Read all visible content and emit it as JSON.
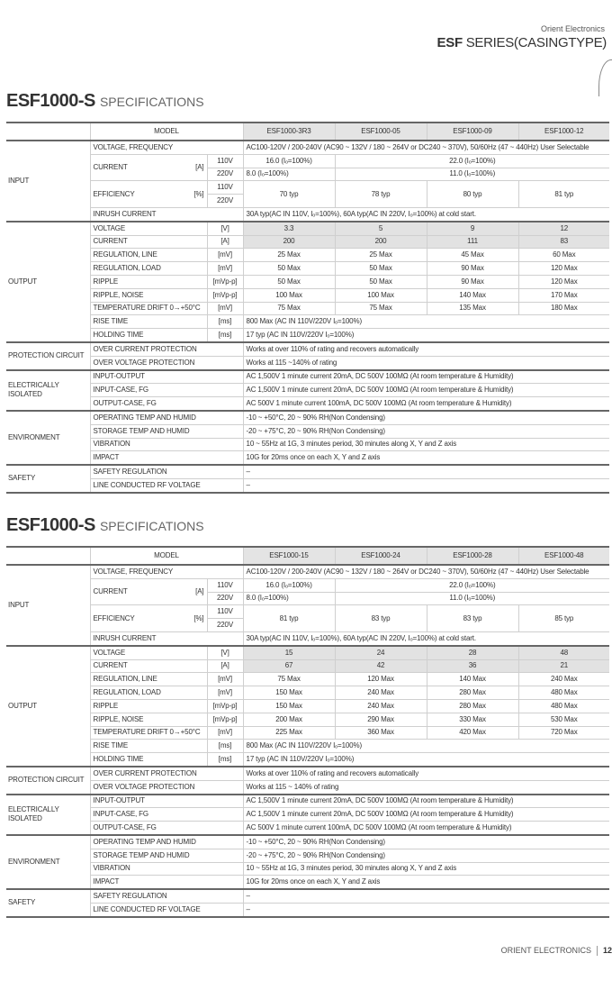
{
  "header": {
    "company": "Orient Electronics",
    "series_bold": "ESF",
    "series_rest": "SERIES(CASINGTYPE)"
  },
  "footer": {
    "company": "ORIENT ELECTRONICS",
    "page": "12"
  },
  "tables": [
    {
      "title_bold": "ESF1000-S",
      "title_rest": "SPECIFICATIONS",
      "model_label": "MODEL",
      "models": [
        "ESF1000-3R3",
        "ESF1000-05",
        "ESF1000-09",
        "ESF1000-12"
      ],
      "rows": [
        {
          "g": "INPUT",
          "label": "VOLTAGE, FREQUENCY",
          "cells": [
            [
              "AC100-120V / 200-240V (AC90 ~ 132V / 180 ~ 264V or DC240 ~ 370V), 50/60Hz (47 ~ 440Hz) User Selectable",
              4,
              1,
              "l"
            ]
          ]
        },
        {
          "g": "INPUT",
          "label": "CURRENT",
          "unit": "[A]",
          "sub": "110V",
          "lrs": 2,
          "cells": [
            [
              "16.0 (Iₒ=100%)",
              1,
              1,
              "c"
            ],
            [
              "22.0 (Iₒ=100%)",
              3,
              1,
              "c"
            ]
          ]
        },
        {
          "g": "INPUT",
          "cont": true,
          "sub": "220V",
          "cells": [
            [
              "8.0 (Iₒ=100%)",
              1,
              1,
              "l"
            ],
            [
              "11.0 (Iₒ=100%)",
              3,
              1,
              "c"
            ]
          ]
        },
        {
          "g": "INPUT",
          "label": "EFFICIENCY",
          "unit": "[%]",
          "sub": "110V",
          "lrs": 2,
          "cells": [
            [
              "70 typ",
              1,
              2,
              "c"
            ],
            [
              "78 typ",
              1,
              2,
              "c"
            ],
            [
              "80 typ",
              1,
              2,
              "c"
            ],
            [
              "81 typ",
              1,
              2,
              "c"
            ]
          ]
        },
        {
          "g": "INPUT",
          "cont": true,
          "sub": "220V",
          "cells": []
        },
        {
          "g": "INPUT",
          "label": "INRUSH CURRENT",
          "cells": [
            [
              "30A typ(AC IN 110V, Iₒ=100%), 60A typ(AC IN 220V, Iₒ=100%) at cold start.",
              4,
              1,
              "l"
            ]
          ]
        },
        {
          "g": "OUTPUT",
          "label": "VOLTAGE",
          "unit": "[V]",
          "gray": true,
          "cells": [
            [
              "3.3",
              1,
              1,
              "c"
            ],
            [
              "5",
              1,
              1,
              "c"
            ],
            [
              "9",
              1,
              1,
              "c"
            ],
            [
              "12",
              1,
              1,
              "c"
            ]
          ]
        },
        {
          "g": "OUTPUT",
          "label": "CURRENT",
          "unit": "[A]",
          "gray": true,
          "cells": [
            [
              "200",
              1,
              1,
              "c"
            ],
            [
              "200",
              1,
              1,
              "c"
            ],
            [
              "111",
              1,
              1,
              "c"
            ],
            [
              "83",
              1,
              1,
              "c"
            ]
          ]
        },
        {
          "g": "OUTPUT",
          "label": "REGULATION, LINE",
          "unit": "[mV]",
          "cells": [
            [
              "25 Max",
              1,
              1,
              "c"
            ],
            [
              "25 Max",
              1,
              1,
              "c"
            ],
            [
              "45 Max",
              1,
              1,
              "c"
            ],
            [
              "60 Max",
              1,
              1,
              "c"
            ]
          ]
        },
        {
          "g": "OUTPUT",
          "label": "REGULATION, LOAD",
          "unit": "[mV]",
          "cells": [
            [
              "50 Max",
              1,
              1,
              "c"
            ],
            [
              "50 Max",
              1,
              1,
              "c"
            ],
            [
              "90 Max",
              1,
              1,
              "c"
            ],
            [
              "120 Max",
              1,
              1,
              "c"
            ]
          ]
        },
        {
          "g": "OUTPUT",
          "label": "RIPPLE",
          "unit": "[mVp-p]",
          "cells": [
            [
              "50 Max",
              1,
              1,
              "c"
            ],
            [
              "50 Max",
              1,
              1,
              "c"
            ],
            [
              "90 Max",
              1,
              1,
              "c"
            ],
            [
              "120 Max",
              1,
              1,
              "c"
            ]
          ]
        },
        {
          "g": "OUTPUT",
          "label": "RIPPLE, NOISE",
          "unit": "[mVp-p]",
          "cells": [
            [
              "100 Max",
              1,
              1,
              "c"
            ],
            [
              "100 Max",
              1,
              1,
              "c"
            ],
            [
              "140 Max",
              1,
              1,
              "c"
            ],
            [
              "170 Max",
              1,
              1,
              "c"
            ]
          ]
        },
        {
          "g": "OUTPUT",
          "label": "TEMPERATURE DRIFT 0→+50°C",
          "unit": "[mV]",
          "cells": [
            [
              "75 Max",
              1,
              1,
              "c"
            ],
            [
              "75 Max",
              1,
              1,
              "c"
            ],
            [
              "135 Max",
              1,
              1,
              "c"
            ],
            [
              "180 Max",
              1,
              1,
              "c"
            ]
          ]
        },
        {
          "g": "OUTPUT",
          "label": "RISE TIME",
          "unit": "[ms]",
          "cells": [
            [
              "800 Max (AC IN 110V/220V Iₒ=100%)",
              4,
              1,
              "l"
            ]
          ]
        },
        {
          "g": "OUTPUT",
          "label": "HOLDING TIME",
          "unit": "[ms]",
          "cells": [
            [
              "17 typ (AC IN 110V/220V Iₒ=100%)",
              4,
              1,
              "l"
            ]
          ]
        },
        {
          "g": "PROTECTION CIRCUIT",
          "label": "OVER CURRENT PROTECTION",
          "cells": [
            [
              "Works at over 110% of rating and recovers automatically",
              4,
              1,
              "l"
            ]
          ]
        },
        {
          "g": "PROTECTION CIRCUIT",
          "label": "OVER VOLTAGE PROTECTION",
          "cells": [
            [
              "Works at 115 ~140% of rating",
              4,
              1,
              "l"
            ]
          ]
        },
        {
          "g": "ELECTRICALLY ISOLATED",
          "label": "INPUT-OUTPUT",
          "cells": [
            [
              "AC 1,500V 1 minute current 20mA, DC 500V 100MΩ (At room temperature & Humidity)",
              4,
              1,
              "l"
            ]
          ]
        },
        {
          "g": "ELECTRICALLY ISOLATED",
          "label": "INPUT-CASE, FG",
          "cells": [
            [
              "AC 1,500V 1 minute current 20mA, DC 500V 100MΩ (At room temperature & Humidity)",
              4,
              1,
              "l"
            ]
          ]
        },
        {
          "g": "ELECTRICALLY ISOLATED",
          "label": "OUTPUT-CASE, FG",
          "cells": [
            [
              "AC 500V 1 minute current 100mA, DC 500V 100MΩ (At room temperature & Humidity)",
              4,
              1,
              "l"
            ]
          ]
        },
        {
          "g": "ENVIRONMENT",
          "label": "OPERATING TEMP AND HUMID",
          "cells": [
            [
              "-10 ~ +50°C, 20 ~ 90% RH(Non Condensing)",
              4,
              1,
              "l"
            ]
          ]
        },
        {
          "g": "ENVIRONMENT",
          "label": "STORAGE TEMP AND HUMID",
          "cells": [
            [
              "-20 ~ +75°C, 20 ~ 90% RH(Non Condensing)",
              4,
              1,
              "l"
            ]
          ]
        },
        {
          "g": "ENVIRONMENT",
          "label": "VIBRATION",
          "cells": [
            [
              "10 ~ 55Hz at 1G, 3 minutes period, 30 minutes along X, Y and Z axis",
              4,
              1,
              "l"
            ]
          ]
        },
        {
          "g": "ENVIRONMENT",
          "label": "IMPACT",
          "cells": [
            [
              "10G for 20ms once on each X, Y and Z axis",
              4,
              1,
              "l"
            ]
          ]
        },
        {
          "g": "SAFETY",
          "label": "SAFETY REGULATION",
          "cells": [
            [
              "–",
              4,
              1,
              "l"
            ]
          ]
        },
        {
          "g": "SAFETY",
          "label": "LINE CONDUCTED RF VOLTAGE",
          "cells": [
            [
              "–",
              4,
              1,
              "l"
            ]
          ]
        }
      ]
    },
    {
      "title_bold": "ESF1000-S",
      "title_rest": "SPECIFICATIONS",
      "model_label": "MODEL",
      "models": [
        "ESF1000-15",
        "ESF1000-24",
        "ESF1000-28",
        "ESF1000-48"
      ],
      "rows": [
        {
          "g": "INPUT",
          "label": "VOLTAGE, FREQUENCY",
          "cells": [
            [
              "AC100-120V / 200-240V (AC90 ~ 132V / 180 ~ 264V or DC240 ~ 370V), 50/60Hz (47 ~ 440Hz) User Selectable",
              4,
              1,
              "l"
            ]
          ]
        },
        {
          "g": "INPUT",
          "label": "CURRENT",
          "unit": "[A]",
          "sub": "110V",
          "lrs": 2,
          "cells": [
            [
              "16.0 (Iₒ=100%)",
              1,
              1,
              "c"
            ],
            [
              "22.0 (Iₒ=100%)",
              3,
              1,
              "c"
            ]
          ]
        },
        {
          "g": "INPUT",
          "cont": true,
          "sub": "220V",
          "cells": [
            [
              "8.0 (Iₒ=100%)",
              1,
              1,
              "l"
            ],
            [
              "11.0 (Iₒ=100%)",
              3,
              1,
              "c"
            ]
          ]
        },
        {
          "g": "INPUT",
          "label": "EFFICIENCY",
          "unit": "[%]",
          "sub": "110V",
          "lrs": 2,
          "cells": [
            [
              "81 typ",
              1,
              2,
              "c"
            ],
            [
              "83 typ",
              1,
              2,
              "c"
            ],
            [
              "83 typ",
              1,
              2,
              "c"
            ],
            [
              "85 typ",
              1,
              2,
              "c"
            ]
          ]
        },
        {
          "g": "INPUT",
          "cont": true,
          "sub": "220V",
          "cells": []
        },
        {
          "g": "INPUT",
          "label": "INRUSH CURRENT",
          "cells": [
            [
              "30A typ(AC IN 110V, Iₒ=100%), 60A typ(AC IN 220V, Iₒ=100%) at cold start.",
              4,
              1,
              "l"
            ]
          ]
        },
        {
          "g": "OUTPUT",
          "label": "VOLTAGE",
          "unit": "[V]",
          "gray": true,
          "cells": [
            [
              "15",
              1,
              1,
              "c"
            ],
            [
              "24",
              1,
              1,
              "c"
            ],
            [
              "28",
              1,
              1,
              "c"
            ],
            [
              "48",
              1,
              1,
              "c"
            ]
          ]
        },
        {
          "g": "OUTPUT",
          "label": "CURRENT",
          "unit": "[A]",
          "gray": true,
          "cells": [
            [
              "67",
              1,
              1,
              "c"
            ],
            [
              "42",
              1,
              1,
              "c"
            ],
            [
              "36",
              1,
              1,
              "c"
            ],
            [
              "21",
              1,
              1,
              "c"
            ]
          ]
        },
        {
          "g": "OUTPUT",
          "label": "REGULATION, LINE",
          "unit": "[mV]",
          "cells": [
            [
              "75 Max",
              1,
              1,
              "c"
            ],
            [
              "120 Max",
              1,
              1,
              "c"
            ],
            [
              "140 Max",
              1,
              1,
              "c"
            ],
            [
              "240 Max",
              1,
              1,
              "c"
            ]
          ]
        },
        {
          "g": "OUTPUT",
          "label": "REGULATION, LOAD",
          "unit": "[mV]",
          "cells": [
            [
              "150 Max",
              1,
              1,
              "c"
            ],
            [
              "240 Max",
              1,
              1,
              "c"
            ],
            [
              "280 Max",
              1,
              1,
              "c"
            ],
            [
              "480 Max",
              1,
              1,
              "c"
            ]
          ]
        },
        {
          "g": "OUTPUT",
          "label": "RIPPLE",
          "unit": "[mVp-p]",
          "cells": [
            [
              "150 Max",
              1,
              1,
              "c"
            ],
            [
              "240 Max",
              1,
              1,
              "c"
            ],
            [
              "280 Max",
              1,
              1,
              "c"
            ],
            [
              "480 Max",
              1,
              1,
              "c"
            ]
          ]
        },
        {
          "g": "OUTPUT",
          "label": "RIPPLE, NOISE",
          "unit": "[mVp-p]",
          "cells": [
            [
              "200 Max",
              1,
              1,
              "c"
            ],
            [
              "290 Max",
              1,
              1,
              "c"
            ],
            [
              "330 Max",
              1,
              1,
              "c"
            ],
            [
              "530 Max",
              1,
              1,
              "c"
            ]
          ]
        },
        {
          "g": "OUTPUT",
          "label": "TEMPERATURE DRIFT 0→+50°C",
          "unit": "[mV]",
          "cells": [
            [
              "225 Max",
              1,
              1,
              "c"
            ],
            [
              "360 Max",
              1,
              1,
              "c"
            ],
            [
              "420 Max",
              1,
              1,
              "c"
            ],
            [
              "720 Max",
              1,
              1,
              "c"
            ]
          ]
        },
        {
          "g": "OUTPUT",
          "label": "RISE TIME",
          "unit": "[ms]",
          "cells": [
            [
              "800 Max (AC IN 110V/220V Iₒ=100%)",
              4,
              1,
              "l"
            ]
          ]
        },
        {
          "g": "OUTPUT",
          "label": "HOLDING TIME",
          "unit": "[ms]",
          "cells": [
            [
              "17 typ (AC IN 110V/220V Iₒ=100%)",
              4,
              1,
              "l"
            ]
          ]
        },
        {
          "g": "PROTECTION CIRCUIT",
          "label": "OVER CURRENT PROTECTION",
          "cells": [
            [
              "Works at over 110% of rating and recovers automatically",
              4,
              1,
              "l"
            ]
          ]
        },
        {
          "g": "PROTECTION CIRCUIT",
          "label": "OVER VOLTAGE PROTECTION",
          "cells": [
            [
              "Works at 115 ~ 140% of rating",
              4,
              1,
              "l"
            ]
          ]
        },
        {
          "g": "ELECTRICALLY ISOLATED",
          "label": "INPUT-OUTPUT",
          "cells": [
            [
              "AC 1,500V 1 minute current 20mA, DC 500V 100MΩ (At room temperature & Humidity)",
              4,
              1,
              "l"
            ]
          ]
        },
        {
          "g": "ELECTRICALLY ISOLATED",
          "label": "INPUT-CASE, FG",
          "cells": [
            [
              "AC 1,500V 1 minute current 20mA, DC 500V 100MΩ (At room temperature  &  Humidity)",
              4,
              1,
              "l"
            ]
          ]
        },
        {
          "g": "ELECTRICALLY ISOLATED",
          "label": "OUTPUT-CASE, FG",
          "cells": [
            [
              "AC 500V 1 minute current 100mA, DC 500V 100MΩ (At room temperature & Humidity)",
              4,
              1,
              "l"
            ]
          ]
        },
        {
          "g": "ENVIRONMENT",
          "label": "OPERATING TEMP AND HUMID",
          "cells": [
            [
              "-10 ~ +50°C, 20 ~ 90% RH(Non Condensing)",
              4,
              1,
              "l"
            ]
          ]
        },
        {
          "g": "ENVIRONMENT",
          "label": "STORAGE TEMP AND HUMID",
          "cells": [
            [
              "-20 ~ +75°C, 20 ~ 90% RH(Non Condensing)",
              4,
              1,
              "l"
            ]
          ]
        },
        {
          "g": "ENVIRONMENT",
          "label": "VIBRATION",
          "cells": [
            [
              "10 ~ 55Hz at 1G, 3 minutes period, 30 minutes along X, Y and Z axis",
              4,
              1,
              "l"
            ]
          ]
        },
        {
          "g": "ENVIRONMENT",
          "label": "IMPACT",
          "cells": [
            [
              "10G for 20ms once on each X, Y and Z axis",
              4,
              1,
              "l"
            ]
          ]
        },
        {
          "g": "SAFETY",
          "label": "SAFETY REGULATION",
          "cells": [
            [
              "–",
              4,
              1,
              "l"
            ]
          ]
        },
        {
          "g": "SAFETY",
          "label": "LINE CONDUCTED RF VOLTAGE",
          "cells": [
            [
              "–",
              4,
              1,
              "l"
            ]
          ]
        }
      ]
    }
  ]
}
